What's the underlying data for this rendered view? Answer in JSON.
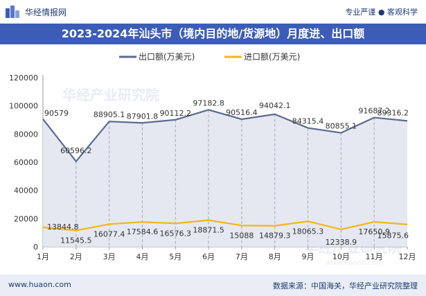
{
  "brand": {
    "name": "华经情报网",
    "tagline": "专业严谨 ● 客观科学"
  },
  "title": "2023-2024年汕头市（境内目的地/货源地）月度进、出口额",
  "footer": {
    "website": "www.huaon.com",
    "source": "数据来源：中国海关，华经产业研究院整理"
  },
  "watermarks": [
    "华经产业研究院",
    "华经产业研究院",
    "www.huaon.com"
  ],
  "colors": {
    "brand": "#3b5db8",
    "export": "#5a6b90",
    "import": "#f2b70f",
    "area": "#e2e6f0"
  },
  "chart_data": {
    "type": "line",
    "categories": [
      "1月",
      "2月",
      "3月",
      "4月",
      "5月",
      "6月",
      "7月",
      "8月",
      "9月",
      "10月",
      "11月",
      "12月"
    ],
    "series": [
      {
        "name": "出口额(万美元)",
        "values": [
          90579,
          60596.2,
          88905.1,
          87901.8,
          90112.2,
          97182.8,
          90516.4,
          94042.1,
          84315.4,
          80855.1,
          91687.2,
          89316.2
        ],
        "labels": [
          "90579",
          "60596.2",
          "88905.1",
          "87901.8",
          "90112.2",
          "97182.8",
          "90516.4",
          "94042.1",
          "84315.4",
          "80855.1",
          "91687.2",
          "89316.2"
        ]
      },
      {
        "name": "进口额(万美元)",
        "values": [
          13844.8,
          11545.5,
          16077.4,
          17584.6,
          16576.3,
          18871.5,
          15088,
          14879.3,
          18065.3,
          12338.9,
          17650.9,
          15875.6
        ],
        "labels": [
          "13844.8",
          "11545.5",
          "16077.4",
          "17584.6",
          "16576.3",
          "18871.5",
          "15088",
          "14879.3",
          "18065.3",
          "12338.9",
          "17650.9",
          "15875.6"
        ]
      }
    ],
    "yticks": [
      "0",
      "20000",
      "40000",
      "60000",
      "80000",
      "100000",
      "120000"
    ],
    "ylim": [
      0,
      120000
    ],
    "grid": false,
    "legend": "top-center"
  }
}
